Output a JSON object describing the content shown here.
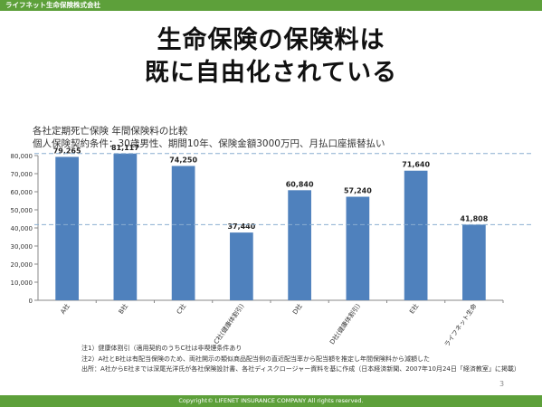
{
  "header": {
    "company": "ライフネット生命保険株式会社"
  },
  "title": {
    "line1": "生命保険の保険料は",
    "line2": "既に自由化されている"
  },
  "subtitle": {
    "line1": "各社定期死亡保険 年間保険料の比較",
    "line2": "個人保険契約条件：30歳男性、期間10年、保険金額3000万円、月払口座振替払い"
  },
  "chart_data": {
    "type": "bar",
    "categories": [
      "A社",
      "B社",
      "C社",
      "C社(健康体割引)",
      "D社",
      "D社(健康体割引)",
      "E社",
      "ライフネット生命"
    ],
    "values": [
      79265,
      81117,
      74250,
      37440,
      60840,
      57240,
      71640,
      41808
    ],
    "value_labels": [
      "79,265",
      "81,117",
      "74,250",
      "37,440",
      "60,840",
      "57,240",
      "71,640",
      "41,808"
    ],
    "y_ticks": [
      "0",
      "10,000",
      "20,000",
      "30,000",
      "40,000",
      "50,000",
      "60,000",
      "70,000",
      "80,000"
    ],
    "ylim": [
      0,
      80000
    ],
    "reference_lines": [
      81117,
      41808
    ],
    "bar_color": "#4f81bd",
    "reference_line_color": "#8aaed0",
    "grid": false,
    "title": "",
    "xlabel": "",
    "ylabel": ""
  },
  "notes": {
    "n1": "注1）健康体割引（適用契約のうちC社は非喫煙条件あり",
    "n2": "注2）A社とB社は有配当保険のため、両社開示の類似商品配当例の直近配当率から配当額を推定し年間保険料から減額した",
    "n3": "出所：A社からE社までは深尾光洋氏が各社保険設計書、各社ディスクロージャー資料を基に作成（日本経済新聞、2007年10月24日「経済教室」に掲載）"
  },
  "page_number": "3",
  "footer": {
    "copyright": "Copyright© LIFENET INSURANCE COMPANY All rights reserved."
  },
  "colors": {
    "accent": "#5da03a"
  }
}
